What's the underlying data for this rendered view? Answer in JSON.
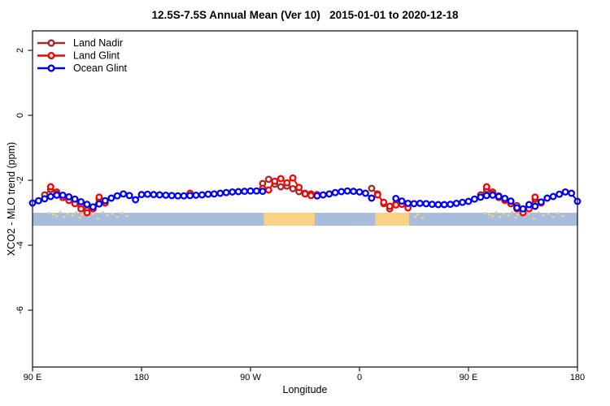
{
  "chart_data": {
    "type": "line",
    "title": "12.5S-7.5S Annual Mean (Ver 10)   2015-01-01 to 2020-12-18",
    "xlabel": "Longitude",
    "ylabel": "XCO2 - MLO trend (ppm)",
    "xlim_wrapped_degrees": [
      90,
      540
    ],
    "ylim": [
      -7.75,
      2.6
    ],
    "grid": false,
    "x_ticks": [
      {
        "lon": 90,
        "label": "90 E"
      },
      {
        "lon": 180,
        "label": "180"
      },
      {
        "lon": 270,
        "label": "90 W"
      },
      {
        "lon": 360,
        "label": "0"
      },
      {
        "lon": 450,
        "label": "90 E"
      },
      {
        "lon": 540,
        "label": "180"
      }
    ],
    "y_ticks": [
      2,
      0,
      -2,
      -4,
      -6
    ],
    "legend": {
      "position": "top-left-inside",
      "items": [
        {
          "name": "Land Nadir",
          "color": "#A52A2A"
        },
        {
          "name": "Land Glint",
          "color": "#FF0000"
        },
        {
          "name": "Ocean Glint",
          "color": "#0000FF"
        }
      ]
    },
    "series": [
      {
        "name": "Land Nadir",
        "color": "#A52A2A",
        "points": [
          [
            100,
            -2.45
          ],
          [
            105,
            -2.28
          ],
          [
            110,
            -2.36
          ],
          [
            115,
            -2.48
          ],
          [
            120,
            -2.56
          ],
          [
            125,
            -2.66
          ],
          [
            130,
            -2.78
          ],
          [
            135,
            -2.92
          ],
          [
            140,
            -2.84
          ],
          [
            145,
            -2.58
          ],
          [
            280,
            -2.1
          ],
          [
            285,
            -1.97
          ],
          [
            290,
            -2.12
          ],
          [
            295,
            -2.2
          ],
          [
            300,
            -2.18
          ],
          [
            305,
            -2.26
          ],
          [
            310,
            -2.35
          ],
          [
            315,
            -2.4
          ],
          [
            320,
            -2.42
          ],
          [
            325,
            -2.45
          ],
          [
            370,
            -2.25
          ],
          [
            375,
            -2.42
          ],
          [
            380,
            -2.72
          ],
          [
            385,
            -2.88
          ],
          [
            390,
            -2.72
          ],
          [
            395,
            -2.7
          ],
          [
            460,
            -2.45
          ],
          [
            465,
            -2.28
          ],
          [
            470,
            -2.36
          ],
          [
            475,
            -2.48
          ],
          [
            480,
            -2.56
          ],
          [
            485,
            -2.66
          ],
          [
            490,
            -2.78
          ],
          [
            495,
            -2.92
          ],
          [
            500,
            -2.84
          ],
          [
            505,
            -2.58
          ]
        ]
      },
      {
        "name": "Land Glint",
        "color": "#FF0000",
        "points": [
          [
            105,
            -2.2
          ],
          [
            110,
            -2.42
          ],
          [
            115,
            -2.53
          ],
          [
            120,
            -2.62
          ],
          [
            125,
            -2.72
          ],
          [
            130,
            -2.88
          ],
          [
            135,
            -3.0
          ],
          [
            140,
            -2.88
          ],
          [
            145,
            -2.52
          ],
          [
            150,
            -2.7
          ],
          [
            220,
            -2.4
          ],
          [
            280,
            -2.25
          ],
          [
            285,
            -2.3
          ],
          [
            290,
            -2.03
          ],
          [
            295,
            -1.95
          ],
          [
            300,
            -2.08
          ],
          [
            305,
            -1.93
          ],
          [
            310,
            -2.22
          ],
          [
            315,
            -2.42
          ],
          [
            320,
            -2.47
          ],
          [
            325,
            -2.44
          ],
          [
            375,
            -2.45
          ],
          [
            380,
            -2.68
          ],
          [
            385,
            -2.8
          ],
          [
            390,
            -2.76
          ],
          [
            395,
            -2.74
          ],
          [
            400,
            -2.85
          ],
          [
            465,
            -2.2
          ],
          [
            470,
            -2.42
          ],
          [
            475,
            -2.53
          ],
          [
            480,
            -2.62
          ],
          [
            485,
            -2.72
          ],
          [
            490,
            -2.88
          ],
          [
            495,
            -3.0
          ],
          [
            500,
            -2.88
          ],
          [
            505,
            -2.52
          ],
          [
            510,
            -2.7
          ]
        ]
      },
      {
        "name": "Ocean Glint",
        "color": "#0000FF",
        "points": [
          [
            90,
            -2.7
          ],
          [
            95,
            -2.63
          ],
          [
            100,
            -2.57
          ],
          [
            105,
            -2.5
          ],
          [
            110,
            -2.46
          ],
          [
            115,
            -2.46
          ],
          [
            120,
            -2.51
          ],
          [
            125,
            -2.58
          ],
          [
            130,
            -2.66
          ],
          [
            135,
            -2.74
          ],
          [
            140,
            -2.82
          ],
          [
            145,
            -2.73
          ],
          [
            150,
            -2.63
          ],
          [
            155,
            -2.55
          ],
          [
            160,
            -2.48
          ],
          [
            165,
            -2.42
          ],
          [
            170,
            -2.47
          ],
          [
            175,
            -2.6
          ],
          [
            180,
            -2.44
          ],
          [
            185,
            -2.43
          ],
          [
            190,
            -2.44
          ],
          [
            195,
            -2.45
          ],
          [
            200,
            -2.46
          ],
          [
            205,
            -2.47
          ],
          [
            210,
            -2.48
          ],
          [
            215,
            -2.48
          ],
          [
            220,
            -2.47
          ],
          [
            225,
            -2.46
          ],
          [
            230,
            -2.45
          ],
          [
            235,
            -2.43
          ],
          [
            240,
            -2.42
          ],
          [
            245,
            -2.4
          ],
          [
            250,
            -2.38
          ],
          [
            255,
            -2.36
          ],
          [
            260,
            -2.35
          ],
          [
            265,
            -2.34
          ],
          [
            270,
            -2.33
          ],
          [
            275,
            -2.33
          ],
          [
            280,
            -2.34
          ],
          [
            325,
            -2.48
          ],
          [
            330,
            -2.45
          ],
          [
            335,
            -2.42
          ],
          [
            340,
            -2.38
          ],
          [
            345,
            -2.35
          ],
          [
            350,
            -2.33
          ],
          [
            355,
            -2.34
          ],
          [
            360,
            -2.36
          ],
          [
            365,
            -2.4
          ],
          [
            370,
            -2.55
          ],
          [
            390,
            -2.56
          ],
          [
            395,
            -2.64
          ],
          [
            400,
            -2.71
          ],
          [
            405,
            -2.72
          ],
          [
            410,
            -2.71
          ],
          [
            415,
            -2.72
          ],
          [
            420,
            -2.74
          ],
          [
            425,
            -2.75
          ],
          [
            430,
            -2.75
          ],
          [
            435,
            -2.74
          ],
          [
            440,
            -2.71
          ],
          [
            445,
            -2.68
          ],
          [
            450,
            -2.65
          ],
          [
            455,
            -2.58
          ],
          [
            460,
            -2.52
          ],
          [
            465,
            -2.47
          ],
          [
            470,
            -2.46
          ],
          [
            475,
            -2.5
          ],
          [
            480,
            -2.56
          ],
          [
            485,
            -2.64
          ],
          [
            490,
            -2.85
          ],
          [
            495,
            -2.88
          ],
          [
            500,
            -2.75
          ],
          [
            505,
            -2.8
          ],
          [
            510,
            -2.67
          ],
          [
            515,
            -2.55
          ],
          [
            520,
            -2.5
          ],
          [
            525,
            -2.43
          ],
          [
            530,
            -2.36
          ],
          [
            535,
            -2.4
          ],
          [
            540,
            -2.65
          ]
        ]
      }
    ],
    "map_strip": {
      "description": "land/ocean map band of the 12.5S-7.5S latitude strip",
      "value_range": [
        -3.0,
        -3.4
      ],
      "ocean_color": "#A8BDDB",
      "land_color": "#FBD186",
      "land_segments": [
        [
          281,
          323
        ],
        [
          373,
          401
        ]
      ],
      "island_dots": [
        [
          104,
          -3
        ],
        [
          107,
          -1
        ],
        [
          110,
          1
        ],
        [
          113,
          -4
        ],
        [
          116,
          2
        ],
        [
          119,
          -2
        ],
        [
          123,
          0
        ],
        [
          126,
          -4
        ],
        [
          129,
          3
        ],
        [
          131,
          -1
        ],
        [
          133,
          -3
        ],
        [
          136,
          1
        ],
        [
          140,
          -2
        ],
        [
          144,
          4
        ],
        [
          148,
          -4
        ],
        [
          152,
          0
        ],
        [
          156,
          -2
        ],
        [
          160,
          2
        ],
        [
          164,
          -3
        ],
        [
          168,
          1
        ],
        [
          406,
          2
        ],
        [
          408,
          -1
        ],
        [
          412,
          3
        ],
        [
          464,
          -3
        ],
        [
          467,
          -1
        ],
        [
          470,
          1
        ],
        [
          473,
          -4
        ],
        [
          476,
          2
        ],
        [
          479,
          -2
        ],
        [
          483,
          0
        ],
        [
          486,
          -4
        ],
        [
          489,
          3
        ],
        [
          491,
          -1
        ],
        [
          493,
          -3
        ],
        [
          496,
          1
        ],
        [
          500,
          -2
        ],
        [
          504,
          4
        ],
        [
          508,
          -4
        ],
        [
          512,
          0
        ],
        [
          516,
          -2
        ],
        [
          520,
          2
        ],
        [
          524,
          -3
        ],
        [
          528,
          1
        ]
      ]
    },
    "style": {
      "axis_color": "#2b2b2b",
      "marker": "open-circle",
      "background": "#ffffff"
    }
  }
}
